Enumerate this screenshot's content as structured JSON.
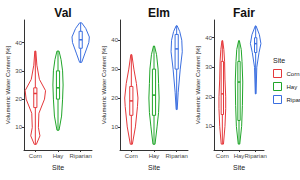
{
  "chart_data": [
    {
      "type": "violin",
      "title": "Val",
      "x_label": "Site",
      "y_label": "Volumetric Water Content [%]",
      "categories": [
        "Corn",
        "Hay",
        "Riparian"
      ],
      "ylim": [
        2,
        48
      ],
      "yticks": [
        10,
        20,
        30,
        40
      ],
      "series": [
        {
          "name": "Corn",
          "color": "#e5383b",
          "box": [
            4,
            17,
            22,
            24,
            37
          ],
          "density": [
            [
              4,
              0.1
            ],
            [
              7,
              0.45
            ],
            [
              10,
              0.3
            ],
            [
              15,
              0.35
            ],
            [
              20,
              0.9
            ],
            [
              23,
              1
            ],
            [
              27,
              0.4
            ],
            [
              32,
              0.15
            ],
            [
              37,
              0.05
            ]
          ]
        },
        {
          "name": "Hay",
          "color": "#21a62a",
          "box": [
            9,
            20,
            24,
            30,
            37
          ],
          "density": [
            [
              9,
              0.1
            ],
            [
              14,
              0.35
            ],
            [
              20,
              0.45
            ],
            [
              25,
              0.5
            ],
            [
              30,
              0.45
            ],
            [
              34,
              0.3
            ],
            [
              37,
              0.1
            ]
          ]
        },
        {
          "name": "Riparian",
          "color": "#3b6fe0",
          "box": [
            33,
            38,
            41,
            44,
            47
          ],
          "density": [
            [
              33,
              0.1
            ],
            [
              36,
              0.4
            ],
            [
              40,
              0.8
            ],
            [
              42,
              0.85
            ],
            [
              45,
              0.5
            ],
            [
              47,
              0.1
            ]
          ]
        }
      ]
    },
    {
      "type": "violin",
      "title": "Elm",
      "x_label": "Site",
      "y_label": "Volumetric Water Content [%]",
      "categories": [
        "Corn",
        "Hay",
        "Riparian"
      ],
      "ylim": [
        2,
        47
      ],
      "yticks": [
        10,
        20,
        30,
        40
      ],
      "series": [
        {
          "name": "Corn",
          "color": "#e5383b",
          "box": [
            4,
            14,
            19,
            24,
            35
          ],
          "density": [
            [
              4,
              0.1
            ],
            [
              10,
              0.4
            ],
            [
              17,
              0.6
            ],
            [
              20,
              0.65
            ],
            [
              25,
              0.5
            ],
            [
              30,
              0.25
            ],
            [
              35,
              0.05
            ]
          ]
        },
        {
          "name": "Hay",
          "color": "#21a62a",
          "box": [
            4,
            14,
            21,
            30,
            38
          ],
          "density": [
            [
              4,
              0.1
            ],
            [
              10,
              0.3
            ],
            [
              15,
              0.45
            ],
            [
              20,
              0.5
            ],
            [
              25,
              0.45
            ],
            [
              30,
              0.4
            ],
            [
              35,
              0.25
            ],
            [
              38,
              0.05
            ]
          ]
        },
        {
          "name": "Riparian",
          "color": "#3b6fe0",
          "box": [
            16,
            30,
            37,
            42,
            45
          ],
          "density": [
            [
              16,
              0.05
            ],
            [
              22,
              0.15
            ],
            [
              30,
              0.35
            ],
            [
              36,
              0.55
            ],
            [
              40,
              0.5
            ],
            [
              43,
              0.3
            ],
            [
              45,
              0.05
            ]
          ]
        }
      ]
    },
    {
      "type": "violin",
      "title": "Fair",
      "x_label": "Site",
      "y_label": "Volumetric Water Content [%]",
      "categories": [
        "Corn",
        "Hay",
        "Riparian"
      ],
      "ylim": [
        2,
        46
      ],
      "yticks": [
        10,
        20,
        30,
        40
      ],
      "legend": "right",
      "legend_title": "Site",
      "series": [
        {
          "name": "Corn",
          "color": "#e5383b",
          "box": [
            4,
            14,
            21,
            32,
            39
          ],
          "density": [
            [
              4,
              0.15
            ],
            [
              10,
              0.35
            ],
            [
              16,
              0.45
            ],
            [
              20,
              0.45
            ],
            [
              26,
              0.35
            ],
            [
              32,
              0.3
            ],
            [
              36,
              0.2
            ],
            [
              39,
              0.05
            ]
          ]
        },
        {
          "name": "Hay",
          "color": "#21a62a",
          "box": [
            4,
            12,
            25,
            32,
            39
          ],
          "density": [
            [
              4,
              0.1
            ],
            [
              10,
              0.35
            ],
            [
              17,
              0.45
            ],
            [
              25,
              0.5
            ],
            [
              32,
              0.4
            ],
            [
              36,
              0.3
            ],
            [
              39,
              0.05
            ]
          ]
        },
        {
          "name": "Riparian",
          "color": "#3b6fe0",
          "box": [
            21,
            35,
            38,
            40,
            44
          ],
          "density": [
            [
              21,
              0.05
            ],
            [
              30,
              0.15
            ],
            [
              35,
              0.45
            ],
            [
              38,
              0.7
            ],
            [
              41,
              0.5
            ],
            [
              44,
              0.05
            ]
          ]
        }
      ]
    }
  ]
}
